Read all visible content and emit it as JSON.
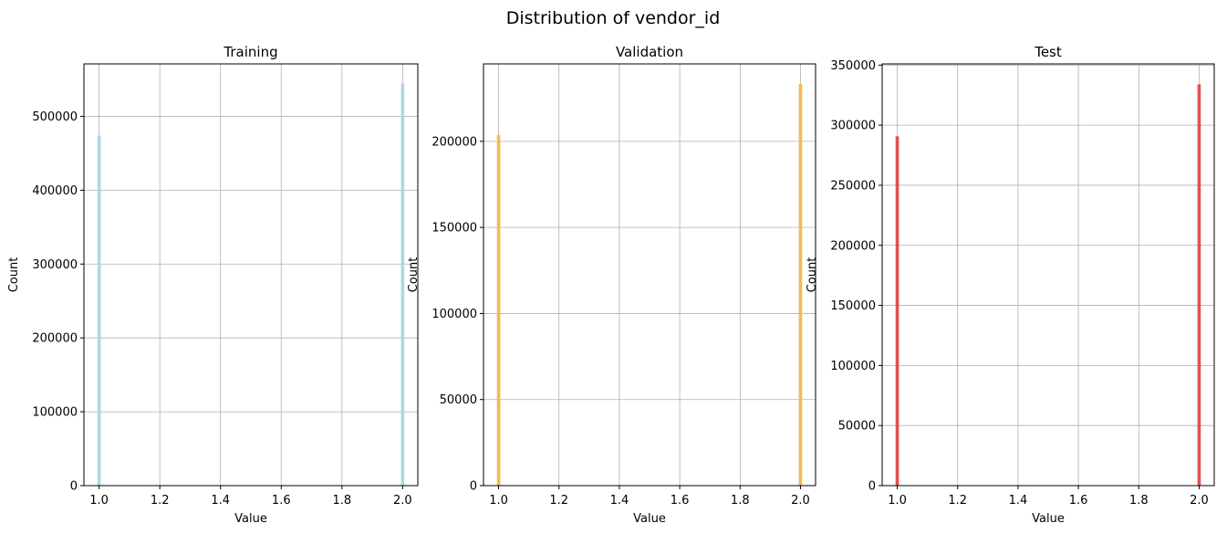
{
  "figure": {
    "title": "Distribution of vendor_id"
  },
  "chart_data": [
    {
      "type": "bar",
      "title": "Training",
      "xlabel": "Value",
      "ylabel": "Count",
      "color": "#add8e6",
      "x": [
        1.0,
        2.0
      ],
      "values": [
        474000,
        544500
      ],
      "xlim": [
        0.95,
        2.05
      ],
      "ylim": [
        0,
        571000
      ],
      "xticks": [
        1.0,
        1.2,
        1.4,
        1.6,
        1.8,
        2.0
      ],
      "xtick_labels": [
        "1.0",
        "1.2",
        "1.4",
        "1.6",
        "1.8",
        "2.0"
      ],
      "yticks": [
        0,
        100000,
        200000,
        300000,
        400000,
        500000
      ],
      "ytick_labels": [
        "0",
        "100000",
        "200000",
        "300000",
        "400000",
        "500000"
      ],
      "grid": true
    },
    {
      "type": "bar",
      "title": "Validation",
      "xlabel": "Value",
      "ylabel": "Count",
      "color": "#f5b94f",
      "x": [
        1.0,
        2.0
      ],
      "values": [
        203600,
        233300
      ],
      "xlim": [
        0.95,
        2.05
      ],
      "ylim": [
        0,
        245000
      ],
      "xticks": [
        1.0,
        1.2,
        1.4,
        1.6,
        1.8,
        2.0
      ],
      "xtick_labels": [
        "1.0",
        "1.2",
        "1.4",
        "1.6",
        "1.8",
        "2.0"
      ],
      "yticks": [
        0,
        50000,
        100000,
        150000,
        200000
      ],
      "ytick_labels": [
        "0",
        "50000",
        "100000",
        "150000",
        "200000"
      ],
      "grid": true
    },
    {
      "type": "bar",
      "title": "Test",
      "xlabel": "Value",
      "ylabel": "Count",
      "color": "#e05250",
      "x": [
        1.0,
        2.0
      ],
      "values": [
        290700,
        334000
      ],
      "xlim": [
        0.95,
        2.05
      ],
      "ylim": [
        0,
        351000
      ],
      "xticks": [
        1.0,
        1.2,
        1.4,
        1.6,
        1.8,
        2.0
      ],
      "xtick_labels": [
        "1.0",
        "1.2",
        "1.4",
        "1.6",
        "1.8",
        "2.0"
      ],
      "yticks": [
        0,
        50000,
        100000,
        150000,
        200000,
        250000,
        300000,
        350000
      ],
      "ytick_labels": [
        "0",
        "50000",
        "100000",
        "150000",
        "200000",
        "250000",
        "300000",
        "350000"
      ],
      "grid": true
    }
  ]
}
